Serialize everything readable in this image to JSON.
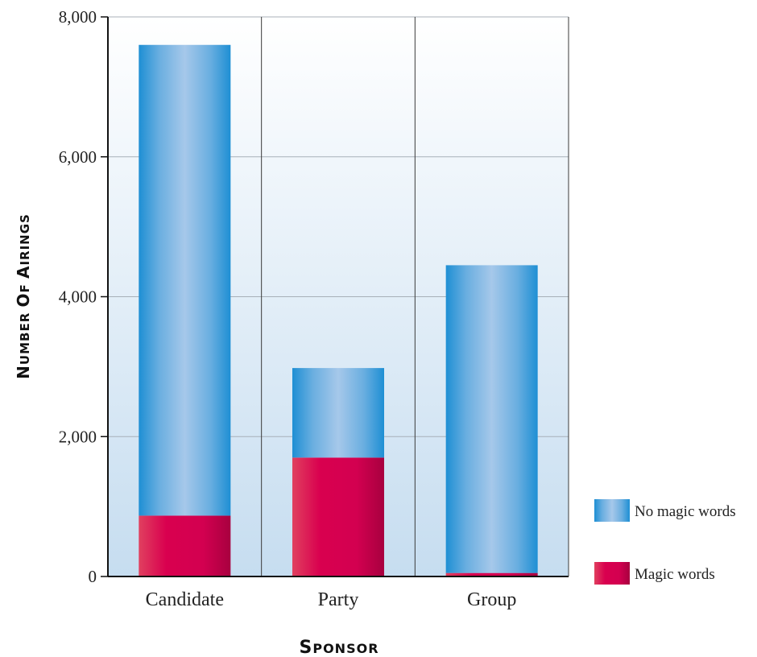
{
  "chart_data": {
    "type": "bar",
    "stacked": true,
    "categories": [
      "Candidate",
      "Party",
      "Group"
    ],
    "series": [
      {
        "name": "Magic words",
        "values": [
          870,
          1700,
          50
        ],
        "color": "#d6004f"
      },
      {
        "name": "No magic words",
        "values": [
          6730,
          1280,
          4400
        ],
        "color": "#4a9fd8"
      }
    ],
    "xlabel": "Sponsor",
    "ylabel": "Number of Airings",
    "ylim": [
      0,
      8000
    ],
    "yticks": [
      0,
      2000,
      4000,
      6000,
      8000
    ],
    "ytick_labels": [
      "0",
      "2,000",
      "4,000",
      "6,000",
      "8,000"
    ],
    "grid": true,
    "legend_position": "right-bottom"
  }
}
